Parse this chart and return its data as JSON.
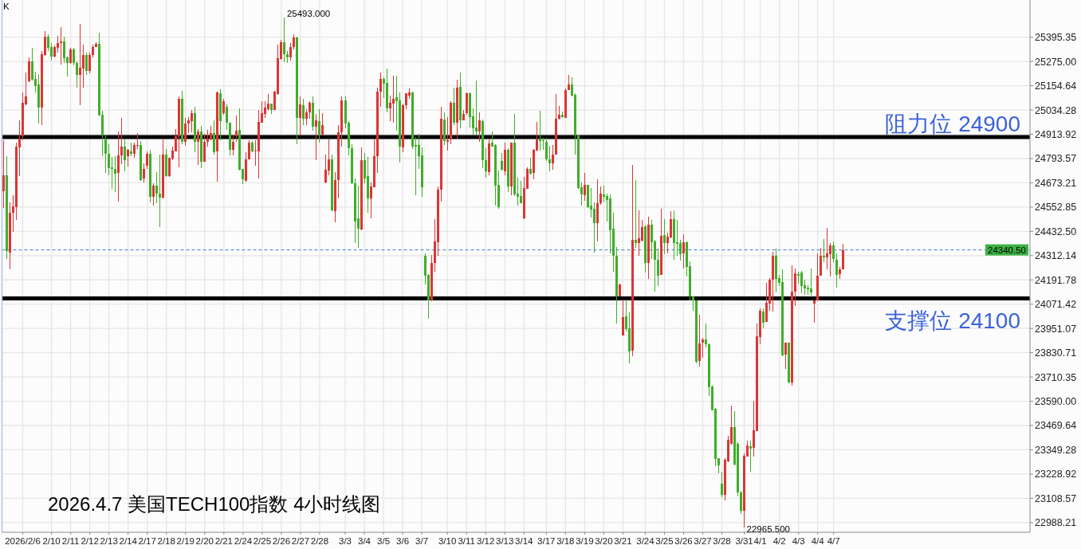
{
  "chart_data": {
    "type": "candlestick",
    "title": "2026.4.7 美国TECH100指数 4小时线图",
    "annotations": [
      "K",
      "25493.000",
      "22965.500"
    ],
    "categories": [
      null,
      null,
      null,
      null,
      null,
      null,
      "2026/2/6",
      null,
      null,
      null,
      null,
      null,
      null,
      null,
      null,
      "2/10",
      null,
      null,
      null,
      null,
      null,
      "2/11",
      null,
      null,
      null,
      null,
      null,
      "2/12",
      null,
      null,
      null,
      null,
      null,
      "2/13",
      null,
      null,
      null,
      null,
      null,
      "2/14",
      null,
      null,
      null,
      null,
      null,
      "2/17",
      null,
      null,
      null,
      null,
      null,
      "2/18",
      null,
      null,
      null,
      null,
      null,
      "2/19",
      null,
      null,
      null,
      null,
      null,
      "2/20",
      null,
      null,
      null,
      null,
      null,
      "2/21",
      null,
      null,
      null,
      null,
      null,
      "2/24",
      null,
      null,
      null,
      null,
      null,
      "2/25",
      null,
      null,
      null,
      null,
      null,
      "2/26",
      null,
      null,
      null,
      null,
      null,
      "2/27",
      null,
      null,
      null,
      null,
      null,
      "2/28",
      null,
      null,
      null,
      null,
      null,
      null,
      null,
      "3/3",
      null,
      null,
      null,
      null,
      null,
      "3/4",
      null,
      null,
      null,
      null,
      null,
      "3/5",
      null,
      null,
      null,
      null,
      null,
      "3/6",
      null,
      null,
      null,
      null,
      null,
      "3/7",
      null,
      null,
      null,
      null,
      null,
      null,
      null,
      "3/10",
      null,
      null,
      null,
      null,
      null,
      "3/11",
      null,
      null,
      null,
      null,
      null,
      "3/12",
      null,
      null,
      null,
      null,
      null,
      "3/13",
      null,
      null,
      null,
      null,
      null,
      "3/14",
      null,
      null,
      null,
      null,
      null,
      null,
      "3/17",
      null,
      null,
      null,
      null,
      null,
      "3/18",
      null,
      null,
      null,
      null,
      null,
      "3/19",
      null,
      null,
      null,
      null,
      null,
      "3/20",
      null,
      null,
      null,
      null,
      null,
      "3/21",
      null,
      null,
      null,
      null,
      null,
      null,
      "3/24",
      null,
      null,
      null,
      null,
      null,
      "3/25",
      null,
      null,
      null,
      null,
      null,
      "3/26",
      null,
      null,
      null,
      null,
      null,
      "3/27",
      null,
      null,
      null,
      null,
      null,
      "3/28",
      null,
      null,
      null,
      null,
      null,
      null,
      "3/31",
      null,
      null,
      null,
      null,
      "4/1",
      null,
      null,
      null,
      null,
      null,
      "4/2",
      null,
      null,
      null,
      null,
      null,
      "4/3",
      null,
      null,
      null,
      null,
      null,
      "4/4",
      null,
      null,
      null,
      null,
      "4/7",
      null,
      null,
      null,
      null,
      null,
      null,
      null,
      null,
      null,
      null,
      null,
      null,
      null,
      null,
      null,
      null,
      null,
      null,
      null,
      null,
      null,
      null,
      null,
      null,
      null,
      null,
      null,
      null,
      null,
      null,
      null,
      null,
      null,
      null,
      null,
      null,
      null,
      null,
      null,
      null,
      null,
      null,
      null,
      null,
      null,
      null,
      null,
      null,
      null,
      null,
      null,
      null,
      null,
      null,
      null,
      null,
      null,
      null,
      null,
      null,
      null
    ],
    "ohlc": [
      [
        24632,
        24885,
        24547,
        24711
      ],
      [
        24711,
        24806,
        24296,
        24336
      ],
      [
        24329,
        24577,
        24244,
        24524
      ],
      [
        24523,
        24612,
        24428,
        24557
      ],
      [
        24551,
        24873,
        24491,
        24854
      ],
      [
        24847,
        24984,
        24705,
        24893
      ],
      [
        24906,
        25122,
        24883,
        25071
      ],
      [
        25063,
        25221,
        25057,
        25100
      ],
      [
        25175,
        25294,
        25172,
        25277
      ],
      [
        25277,
        25344,
        25182,
        25186
      ],
      [
        25190,
        25225,
        25120,
        25155
      ],
      [
        25162,
        25213,
        24968,
        25045
      ],
      [
        25045,
        25328,
        24958,
        25312
      ],
      [
        25308,
        25427,
        25304,
        25399
      ],
      [
        25399,
        25411,
        25328,
        25341
      ],
      [
        25348,
        25366,
        25278,
        25298
      ],
      [
        25298,
        25356,
        25294,
        25348
      ],
      [
        25344,
        25403,
        25321,
        25368
      ],
      [
        25368,
        25447,
        25258,
        25375
      ],
      [
        25375,
        25399,
        25269,
        25290
      ],
      [
        25294,
        25298,
        25199,
        25269
      ],
      [
        25269,
        25344,
        25265,
        25336
      ],
      [
        25336,
        25341,
        25254,
        25266
      ],
      [
        25269,
        25277,
        25147,
        25209
      ],
      [
        25207,
        25462,
        25060,
        25245
      ],
      [
        25242,
        25360,
        25144,
        25308
      ],
      [
        25308,
        25320,
        25207,
        25230
      ],
      [
        25230,
        25320,
        25215,
        25308
      ],
      [
        25306,
        25360,
        25294,
        25348
      ],
      [
        25348,
        25371,
        25346,
        25362
      ],
      [
        25364,
        25419,
        25005,
        25005
      ],
      [
        25012,
        25031,
        24804,
        24909
      ],
      [
        24889,
        24913,
        24724,
        24819
      ],
      [
        24818,
        24863,
        24709,
        24748
      ],
      [
        24751,
        24802,
        24645,
        24743
      ],
      [
        24743,
        24806,
        24626,
        24717
      ],
      [
        24721,
        24929,
        24582,
        24810
      ],
      [
        24810,
        24996,
        24764,
        24854
      ],
      [
        24854,
        24892,
        24731,
        24784
      ],
      [
        24806,
        24841,
        24755,
        24838
      ],
      [
        24830,
        24873,
        24806,
        24819
      ],
      [
        24819,
        24873,
        24796,
        24862
      ],
      [
        24859,
        24921,
        24842,
        24862
      ],
      [
        24862,
        24881,
        24681,
        24688
      ],
      [
        24693,
        24769,
        24673,
        24743
      ],
      [
        24759,
        24829,
        24742,
        24818
      ],
      [
        24818,
        24838,
        24578,
        24605
      ],
      [
        24605,
        24671,
        24559,
        24660
      ],
      [
        24660,
        24726,
        24574,
        24620
      ],
      [
        24620,
        24815,
        24453,
        24598
      ],
      [
        24598,
        24891,
        24594,
        24815
      ],
      [
        24815,
        24842,
        24703,
        24706
      ],
      [
        24706,
        24798,
        24703,
        24796
      ],
      [
        24792,
        24851,
        24785,
        24834
      ],
      [
        24831,
        24941,
        24831,
        24904
      ],
      [
        24904,
        25101,
        24752,
        25088
      ],
      [
        25088,
        25128,
        24864,
        24877
      ],
      [
        24877,
        24996,
        24855,
        24966
      ],
      [
        24966,
        24999,
        24920,
        24983
      ],
      [
        24980,
        25033,
        24924,
        25020
      ],
      [
        25020,
        25051,
        24827,
        24875
      ],
      [
        24875,
        24941,
        24763,
        24926
      ],
      [
        24926,
        24956,
        24748,
        24779
      ],
      [
        24779,
        24917,
        24779,
        24877
      ],
      [
        24875,
        24934,
        24851,
        24891
      ],
      [
        24887,
        24956,
        24884,
        24921
      ],
      [
        24921,
        24985,
        24812,
        24827
      ],
      [
        24829,
        25125,
        24680,
        25121
      ],
      [
        25119,
        25138,
        24884,
        24980
      ],
      [
        25020,
        25088,
        25009,
        25079
      ],
      [
        25049,
        25062,
        24937,
        24970
      ],
      [
        24970,
        24970,
        24809,
        24838
      ],
      [
        24838,
        24910,
        24809,
        24877
      ],
      [
        24904,
        25005,
        24877,
        24930
      ],
      [
        24934,
        25041,
        24736,
        24739
      ],
      [
        24743,
        24743,
        24669,
        24690
      ],
      [
        24684,
        24825,
        24680,
        24789
      ],
      [
        24789,
        24884,
        24788,
        24873
      ],
      [
        24873,
        24881,
        24825,
        24831
      ],
      [
        24831,
        24884,
        24759,
        24834
      ],
      [
        24831,
        25033,
        24696,
        24976
      ],
      [
        24972,
        25079,
        24970,
        25020
      ],
      [
        25016,
        25079,
        24996,
        25046
      ],
      [
        25038,
        25112,
        25029,
        25067
      ],
      [
        25067,
        25067,
        25016,
        25033
      ],
      [
        25033,
        25128,
        25033,
        25125
      ],
      [
        25115,
        25358,
        25108,
        25292
      ],
      [
        25289,
        25381,
        25283,
        25369
      ],
      [
        25369,
        25493,
        25273,
        25312
      ],
      [
        25312,
        25328,
        25266,
        25296
      ],
      [
        25296,
        25365,
        25281,
        25348
      ],
      [
        25348,
        25412,
        25335,
        25395
      ],
      [
        25395,
        25400,
        24863,
        24997
      ],
      [
        24997,
        25100,
        24909,
        25063
      ],
      [
        25059,
        25091,
        24958,
        24993
      ],
      [
        24993,
        25037,
        24958,
        25024
      ],
      [
        25021,
        25080,
        24992,
        25071
      ],
      [
        25071,
        25100,
        24931,
        24951
      ],
      [
        24952,
        25016,
        24784,
        24984
      ],
      [
        24980,
        25037,
        24873,
        24912
      ],
      [
        24912,
        25020,
        24909,
        24960
      ],
      [
        24676,
        24814,
        24672,
        24740
      ],
      [
        24735,
        24889,
        24711,
        24790
      ],
      [
        24790,
        24814,
        24531,
        24537
      ],
      [
        24533,
        24727,
        24478,
        24688
      ],
      [
        24685,
        24958,
        24597,
        24925
      ],
      [
        24922,
        25100,
        24854,
        25083
      ],
      [
        25083,
        25100,
        24945,
        24968
      ],
      [
        24972,
        24979,
        24808,
        24843
      ],
      [
        24846,
        24863,
        24668,
        24672
      ],
      [
        24672,
        24696,
        24373,
        24483
      ],
      [
        24498,
        24659,
        24352,
        24444
      ],
      [
        24441,
        24850,
        24439,
        24786
      ],
      [
        24786,
        24823,
        24672,
        24696
      ],
      [
        24707,
        24801,
        24526,
        24597
      ],
      [
        24597,
        24676,
        24498,
        24656
      ],
      [
        24652,
        24893,
        24652,
        24806
      ],
      [
        24804,
        25146,
        24721,
        25126
      ],
      [
        25124,
        25219,
        25051,
        25190
      ],
      [
        25190,
        25196,
        25093,
        25166
      ],
      [
        25170,
        25241,
        25024,
        25043
      ],
      [
        25043,
        25107,
        24979,
        25071
      ],
      [
        25067,
        25205,
        24972,
        25091
      ],
      [
        25099,
        25205,
        24933,
        25080
      ],
      [
        25083,
        25122,
        24775,
        24854
      ],
      [
        24850,
        25067,
        24826,
        25059
      ],
      [
        25059,
        25116,
        25039,
        25116
      ],
      [
        25107,
        25142,
        25091,
        25122
      ],
      [
        25122,
        25126,
        24839,
        24854
      ],
      [
        24862,
        24902,
        24613,
        24854
      ],
      [
        24862,
        24917,
        24743,
        24804
      ],
      [
        24810,
        24850,
        24605,
        24652
      ],
      [
        24312,
        24325,
        24171,
        24211
      ],
      [
        24217,
        24222,
        23999,
        24092
      ],
      [
        24092,
        24315,
        24088,
        24276
      ],
      [
        24276,
        24494,
        24234,
        24382
      ],
      [
        24379,
        24656,
        24312,
        24639
      ],
      [
        24641,
        25051,
        24580,
        24992
      ],
      [
        24988,
        25024,
        24859,
        24880
      ],
      [
        24875,
        25000,
        24835,
        24885
      ],
      [
        24887,
        25078,
        24863,
        25071
      ],
      [
        25071,
        25146,
        24959,
        24971
      ],
      [
        24971,
        25186,
        24892,
        25146
      ],
      [
        25150,
        25219,
        24942,
        24982
      ],
      [
        24985,
        25034,
        24985,
        25014
      ],
      [
        25017,
        25122,
        25012,
        25117
      ],
      [
        25117,
        25120,
        24949,
        25001
      ],
      [
        25004,
        25043,
        24909,
        24942
      ],
      [
        24947,
        25179,
        24909,
        24929
      ],
      [
        24929,
        25024,
        24876,
        24984
      ],
      [
        24980,
        24988,
        24747,
        24784
      ],
      [
        24784,
        24843,
        24697,
        24729
      ],
      [
        24725,
        24889,
        24709,
        24870
      ],
      [
        24872,
        24929,
        24852,
        24854
      ],
      [
        24859,
        24863,
        24562,
        24661
      ],
      [
        24664,
        24735,
        24543,
        24551
      ],
      [
        24783,
        24821,
        24736,
        24740
      ],
      [
        24729,
        24873,
        24711,
        24837
      ],
      [
        24837,
        24843,
        24626,
        24657
      ],
      [
        24657,
        24872,
        24611,
        24872
      ],
      [
        24872,
        25016,
        24607,
        24614
      ],
      [
        24619,
        24697,
        24562,
        24602
      ],
      [
        24606,
        24681,
        24573,
        24574
      ],
      [
        24498,
        24701,
        24495,
        24648
      ],
      [
        24645,
        24751,
        24644,
        24743
      ],
      [
        24742,
        24798,
        24715,
        24719
      ],
      [
        24721,
        24842,
        24690,
        24837
      ],
      [
        24835,
        24976,
        24835,
        24889
      ],
      [
        24893,
        25032,
        24835,
        24881
      ],
      [
        24885,
        24895,
        24837,
        24879
      ],
      [
        24876,
        24896,
        24780,
        24788
      ],
      [
        24789,
        24855,
        24729,
        24768
      ],
      [
        24768,
        24862,
        24738,
        24814
      ],
      [
        24813,
        25115,
        24813,
        24992
      ],
      [
        24991,
        25054,
        24988,
        25010
      ],
      [
        25010,
        25028,
        24995,
        25000
      ],
      [
        24997,
        25142,
        24997,
        25134
      ],
      [
        25133,
        25208,
        25133,
        25162
      ],
      [
        25162,
        25196,
        25100,
        25107
      ],
      [
        25111,
        25116,
        24815,
        24909
      ],
      [
        24909,
        24913,
        24644,
        24649
      ],
      [
        24652,
        24676,
        24562,
        24615
      ],
      [
        24613,
        24723,
        24586,
        24664
      ],
      [
        24664,
        24665,
        24547,
        24553
      ],
      [
        24561,
        24648,
        24503,
        24541
      ],
      [
        24545,
        24576,
        24329,
        24472
      ],
      [
        24472,
        24692,
        24381,
        24573
      ],
      [
        24573,
        24656,
        24565,
        24621
      ],
      [
        24617,
        24660,
        24580,
        24605
      ],
      [
        24609,
        24620,
        24482,
        24589
      ],
      [
        24597,
        24617,
        24323,
        24439
      ],
      [
        24447,
        24526,
        24234,
        24310
      ],
      [
        24312,
        24356,
        23974,
        24108
      ],
      [
        24111,
        24174,
        24111,
        24170
      ],
      [
        23917,
        24095,
        23917,
        24008
      ],
      [
        24012,
        24095,
        23937,
        23948
      ],
      [
        23952,
        24031,
        23776,
        23838
      ],
      [
        23842,
        24763,
        23814,
        24391
      ],
      [
        24391,
        24688,
        24349,
        24375
      ],
      [
        24375,
        24537,
        24310,
        24399
      ],
      [
        24387,
        24490,
        24382,
        24454
      ],
      [
        24458,
        24462,
        24227,
        24274
      ],
      [
        24274,
        24506,
        24195,
        24466
      ],
      [
        24466,
        24490,
        24296,
        24379
      ],
      [
        24383,
        24391,
        24134,
        24292
      ],
      [
        24292,
        24348,
        24163,
        24213
      ],
      [
        24217,
        24545,
        24215,
        24411
      ],
      [
        24415,
        24494,
        24321,
        24375
      ],
      [
        24375,
        24427,
        24325,
        24407
      ],
      [
        24404,
        24534,
        24399,
        24494
      ],
      [
        24494,
        24537,
        24290,
        24375
      ],
      [
        24379,
        24490,
        24312,
        24369
      ],
      [
        24375,
        24391,
        24286,
        24321
      ],
      [
        24325,
        24419,
        24250,
        24379
      ],
      [
        24379,
        24383,
        24207,
        24258
      ],
      [
        24261,
        24284,
        24092,
        24108
      ],
      [
        24108,
        24112,
        24037,
        24092
      ],
      [
        24092,
        24092,
        23776,
        23784
      ],
      [
        23788,
        24020,
        23764,
        23877
      ],
      [
        23881,
        23905,
        23806,
        23897
      ],
      [
        23897,
        23977,
        23855,
        23871
      ],
      [
        23871,
        23875,
        23615,
        23661
      ],
      [
        23665,
        23668,
        23545,
        23545
      ],
      [
        23554,
        23558,
        23269,
        23305
      ],
      [
        23308,
        23308,
        23233,
        23273
      ],
      [
        23182,
        23241,
        23113,
        23126
      ],
      [
        23126,
        23308,
        23097,
        23298
      ],
      [
        23292,
        23417,
        23288,
        23399
      ],
      [
        23378,
        23570,
        23373,
        23460
      ],
      [
        23462,
        23539,
        23271,
        23275
      ],
      [
        23378,
        23386,
        23117,
        23137
      ],
      [
        23137,
        23146,
        23029,
        23045
      ],
      [
        23045,
        23330,
        22965.5,
        23320
      ],
      [
        23315,
        23396,
        23315,
        23371
      ],
      [
        23367,
        23396,
        23242,
        23354
      ],
      [
        23357,
        23591,
        23315,
        23446
      ],
      [
        23440,
        23974,
        23440,
        23914
      ],
      [
        23908,
        24049,
        23871,
        24039
      ],
      [
        24033,
        24050,
        23950,
        23980
      ],
      [
        23983,
        24178,
        23983,
        24079
      ],
      [
        24076,
        24201,
        24039,
        24191
      ],
      [
        24191,
        24332,
        24035,
        24313
      ],
      [
        24313,
        24345,
        24129,
        24198
      ],
      [
        24201,
        24217,
        24161,
        24178
      ],
      [
        24182,
        24244,
        23815,
        23819
      ],
      [
        23822,
        23879,
        23752,
        23879
      ],
      [
        23881,
        23881,
        23681,
        23684
      ],
      [
        23684,
        24263,
        23668,
        24134
      ],
      [
        24132,
        24250,
        24063,
        24224
      ],
      [
        24221,
        24234,
        24175,
        24211
      ],
      [
        24230,
        24237,
        24125,
        24162
      ],
      [
        24167,
        24194,
        24116,
        24151
      ],
      [
        24155,
        24165,
        24118,
        24147
      ],
      [
        24151,
        24248,
        24112,
        24129
      ],
      [
        24076,
        24092,
        23980,
        24092
      ],
      [
        24089,
        24325,
        24085,
        24213
      ],
      [
        24213,
        24349,
        24213,
        24310
      ],
      [
        24310,
        24395,
        24279,
        24303
      ],
      [
        24303,
        24450,
        24244,
        24323
      ],
      [
        24320,
        24373,
        24207,
        24362
      ],
      [
        24362,
        24382,
        24280,
        24296
      ],
      [
        24292,
        24323,
        24155,
        24217
      ],
      [
        24220,
        24257,
        24198,
        24246
      ],
      [
        24246,
        24369,
        24244,
        24340.5
      ],
      null,
      null,
      null,
      null,
      null,
      null,
      null,
      null,
      null,
      null,
      null,
      null,
      null,
      null,
      null,
      null,
      null,
      null,
      null,
      null,
      null,
      null,
      null,
      null,
      null,
      null,
      null,
      null,
      null,
      null,
      null,
      null,
      null,
      null,
      null,
      null,
      null,
      null,
      null,
      null,
      null,
      null,
      null,
      null,
      null,
      null,
      null,
      null,
      null,
      null,
      null,
      null,
      null,
      null,
      null,
      null,
      null,
      null
    ],
    "colors": [
      "#dc3535",
      "#3fae29",
      "#dc3535",
      "#dc3535",
      "#dc3535",
      "#dc3535",
      "#dc3535",
      "#dc3535",
      "#dc3535",
      "#3fae29",
      "#3fae29",
      "#3fae29",
      "#dc3535",
      "#dc3535",
      "#3fae29",
      "#3fae29",
      "#dc3535",
      "#dc3535",
      "#dc3535",
      "#3fae29",
      "#3fae29",
      "#dc3535",
      "#3fae29",
      "#3fae29",
      "#dc3535",
      "#dc3535",
      "#3fae29",
      "#dc3535",
      "#dc3535",
      "#dc3535",
      "#3fae29",
      "#3fae29",
      "#3fae29",
      "#3fae29",
      "#3fae29",
      "#3fae29",
      "#dc3535",
      "#dc3535",
      "#3fae29",
      "#dc3535",
      "#3fae29",
      "#dc3535",
      "#dc3535",
      "#3fae29",
      "#dc3535",
      "#dc3535",
      "#3fae29",
      "#dc3535",
      "#3fae29",
      "#3fae29",
      "#dc3535",
      "#3fae29",
      "#dc3535",
      "#dc3535",
      "#dc3535",
      "#dc3535",
      "#3fae29",
      "#dc3535",
      "#dc3535",
      "#dc3535",
      "#3fae29",
      "#dc3535",
      "#3fae29",
      "#dc3535",
      "#dc3535",
      "#dc3535",
      "#3fae29",
      "#dc3535",
      "#3fae29",
      "#dc3535",
      "#3fae29",
      "#3fae29",
      "#dc3535",
      "#dc3535",
      "#3fae29",
      "#3fae29",
      "#dc3535",
      "#dc3535",
      "#3fae29",
      "#dc3535",
      "#dc3535",
      "#dc3535",
      "#dc3535",
      "#dc3535",
      "#3fae29",
      "#dc3535",
      "#dc3535",
      "#dc3535",
      "#3fae29",
      "#3fae29",
      "#dc3535",
      "#dc3535",
      "#3fae29",
      "#dc3535",
      "#3fae29",
      "#dc3535",
      "#dc3535",
      "#3fae29",
      "#dc3535",
      "#3fae29",
      "#dc3535",
      "#dc3535",
      "#dc3535",
      "#3fae29",
      "#dc3535",
      "#dc3535",
      "#dc3535",
      "#3fae29",
      "#3fae29",
      "#3fae29",
      "#3fae29",
      "#3fae29",
      "#dc3535",
      "#3fae29",
      "#3fae29",
      "#dc3535",
      "#dc3535",
      "#dc3535",
      "#dc3535",
      "#3fae29",
      "#3fae29",
      "#dc3535",
      "#dc3535",
      "#3fae29",
      "#3fae29",
      "#dc3535",
      "#dc3535",
      "#dc3535",
      "#3fae29",
      "#3fae29",
      "#3fae29",
      "#3fae29",
      "#3fae29",
      "#3fae29",
      "#dc3535",
      "#dc3535",
      "#dc3535",
      "#dc3535",
      "#3fae29",
      "#dc3535",
      "#dc3535",
      "#3fae29",
      "#dc3535",
      "#3fae29",
      "#dc3535",
      "#dc3535",
      "#3fae29",
      "#3fae29",
      "#3fae29",
      "#dc3535",
      "#3fae29",
      "#3fae29",
      "#dc3535",
      "#3fae29",
      "#3fae29",
      "#3fae29",
      "#3fae29",
      "#dc3535",
      "#3fae29",
      "#dc3535",
      "#3fae29",
      "#3fae29",
      "#3fae29",
      "#dc3535",
      "#dc3535",
      "#3fae29",
      "#dc3535",
      "#dc3535",
      "#3fae29",
      "#3fae29",
      "#3fae29",
      "#3fae29",
      "#dc3535",
      "#dc3535",
      "#dc3535",
      "#3fae29",
      "#dc3535",
      "#dc3535",
      "#3fae29",
      "#3fae29",
      "#3fae29",
      "#3fae29",
      "#dc3535",
      "#3fae29",
      "#3fae29",
      "#3fae29",
      "#dc3535",
      "#dc3535",
      "#3fae29",
      "#3fae29",
      "#3fae29",
      "#3fae29",
      "#3fae29",
      "#dc3535",
      "#dc3535",
      "#3fae29",
      "#3fae29",
      "#dc3535",
      "#3fae29",
      "#dc3535",
      "#dc3535",
      "#3fae29",
      "#dc3535",
      "#3fae29",
      "#3fae29",
      "#3fae29",
      "#dc3535",
      "#3fae29",
      "#dc3535",
      "#dc3535",
      "#3fae29",
      "#3fae29",
      "#3fae29",
      "#dc3535",
      "#3fae29",
      "#3fae29",
      "#3fae29",
      "#3fae29",
      "#dc3535",
      "#dc3535",
      "#3fae29",
      "#3fae29",
      "#3fae29",
      "#3fae29",
      "#3fae29",
      "#3fae29",
      "#dc3535",
      "#dc3535",
      "#dc3535",
      "#3fae29",
      "#3fae29",
      "#3fae29",
      "#dc3535",
      "#dc3535",
      "#3fae29",
      "#dc3535",
      "#dc3535",
      "#dc3535",
      "#3fae29",
      "#dc3535",
      "#dc3535",
      "#dc3535",
      "#3fae29",
      "#3fae29",
      "#3fae29",
      "#dc3535",
      "#3fae29",
      "#dc3535",
      "#dc3535",
      "#3fae29",
      "#3fae29",
      "#3fae29",
      "#3fae29",
      "#3fae29",
      "#dc3535",
      "#dc3535",
      "#dc3535",
      "#3fae29",
      "#dc3535",
      "#dc3535",
      "#3fae29",
      "#3fae29",
      "#dc3535",
      "#dc3535",
      null,
      null,
      null,
      null,
      null,
      null,
      null,
      null,
      null,
      null,
      null,
      null,
      null,
      null,
      null,
      null,
      null,
      null,
      null,
      null,
      null,
      null,
      null,
      null,
      null,
      null,
      null,
      null,
      null,
      null,
      null,
      null,
      null,
      null,
      null,
      null,
      null,
      null,
      null,
      null,
      null,
      null,
      null,
      null,
      null,
      null,
      null,
      null,
      null,
      null,
      null,
      null,
      null,
      null,
      null,
      null,
      null,
      null
    ],
    "ylim": [
      22940,
      25580
    ],
    "yticks": [
      {
        "value": 25395.35,
        "label": "25395.35"
      },
      {
        "value": 25275,
        "label": "25275.00"
      },
      {
        "value": 25154.64,
        "label": "25154.64"
      },
      {
        "value": 25034.28,
        "label": "25034.28"
      },
      {
        "value": 24913.92,
        "label": "24913.92"
      },
      {
        "value": 24793.57,
        "label": "24793.57"
      },
      {
        "value": 24673.21,
        "label": "24673.21"
      },
      {
        "value": 24552.85,
        "label": "24552.85"
      },
      {
        "value": 24432.5,
        "label": "24432.50"
      },
      {
        "value": 24312.14,
        "label": "24312.14"
      },
      {
        "value": 24191.78,
        "label": "24191.78"
      },
      {
        "value": 24071.42,
        "label": "24071.42"
      },
      {
        "value": 23951.07,
        "label": "23951.07"
      },
      {
        "value": 23830.71,
        "label": "23830.71"
      },
      {
        "value": 23710.35,
        "label": "23710.35"
      },
      {
        "value": 23590,
        "label": "23590.00"
      },
      {
        "value": 23469.64,
        "label": "23469.64"
      },
      {
        "value": 23349.28,
        "label": "23349.28"
      },
      {
        "value": 23228.92,
        "label": "23228.92"
      },
      {
        "value": 23108.57,
        "label": "23108.57"
      },
      {
        "value": 22988.21,
        "label": "22988.21"
      }
    ],
    "ref_lines": [
      {
        "axis": "y",
        "value": 24900,
        "label": "阻力位 24900",
        "color": "#000000"
      },
      {
        "axis": "y",
        "value": 24100,
        "label": "支撑位 24100",
        "color": "#000000"
      },
      {
        "axis": "y",
        "value": 24340.5,
        "label": "24340.50",
        "color": "#3b7ddd",
        "line_style": "dashed"
      }
    ],
    "grid": true
  }
}
